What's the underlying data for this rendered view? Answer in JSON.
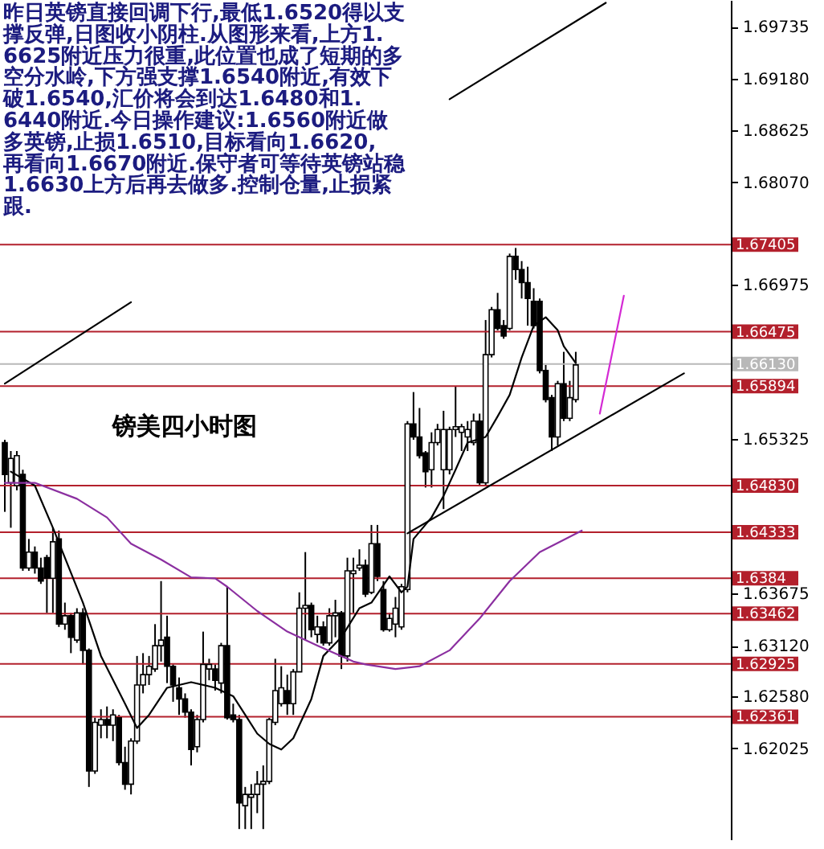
{
  "chart_data": {
    "type": "candlestick",
    "title": "镑美四小时图",
    "annotations": [
      "昨日英镑直接回调下行,最低1.6520得以支撑反弹,日图收小阴柱.从图形来看,上方1.6625附近压力很重,此位置也成了短期的多空分水岭,下方强支撑1.6540附近,有效下破1.6540,汇价将会到达1.6480和1.6440附近.今日操作建议:1.6560附近做多英镑,止损1.6510,目标看向1.6620,再看向1.6670附近.保守者可等待英镑站稳1.6630上方后再去做多.控制仓量,止损紧跟."
    ],
    "categories": [
      null,
      null,
      null,
      null,
      null,
      null,
      null,
      null,
      null,
      null,
      null,
      null,
      null,
      null,
      null,
      null,
      null,
      null,
      null,
      null,
      null,
      null,
      null,
      null,
      null,
      null,
      null,
      null,
      null,
      null,
      null,
      null,
      null,
      null,
      null,
      null,
      null,
      null,
      null,
      null,
      null,
      null,
      null,
      null,
      null,
      null,
      null,
      null,
      null,
      null,
      null,
      null,
      null,
      null,
      null,
      null,
      null,
      null,
      null,
      null,
      null,
      null,
      null,
      null,
      null,
      null,
      null,
      null,
      null,
      null,
      null,
      null,
      null,
      null,
      null,
      null,
      null,
      null,
      null,
      null,
      null,
      null,
      null,
      null,
      null,
      null,
      null,
      null,
      null,
      null,
      null,
      null,
      null,
      null,
      null,
      null,
      null,
      null,
      null,
      null,
      null,
      null,
      null,
      null,
      null,
      null,
      null,
      null,
      null,
      null,
      null,
      null,
      null,
      null,
      null,
      null,
      null,
      null,
      null,
      null,
      null
    ],
    "ohlc": [
      [
        1.6529,
        1.6532,
        1.6455,
        1.6495
      ],
      [
        1.6486,
        1.652,
        1.6438,
        1.6512
      ],
      [
        1.6483,
        1.652,
        1.6478,
        1.6515
      ],
      [
        1.6495,
        1.65,
        1.6392,
        1.6395
      ],
      [
        1.6395,
        1.6426,
        1.6392,
        1.6412
      ],
      [
        1.6412,
        1.6418,
        1.6389,
        1.6395
      ],
      [
        1.6395,
        1.6406,
        1.6378,
        1.6381
      ],
      [
        1.6406,
        1.6409,
        1.6347,
        1.6384
      ],
      [
        1.6384,
        1.6438,
        1.6347,
        1.6423
      ],
      [
        1.6426,
        1.6435,
        1.6332,
        1.6335
      ],
      [
        1.6335,
        1.6358,
        1.6329,
        1.6344
      ],
      [
        1.6344,
        1.6347,
        1.6304,
        1.6321
      ],
      [
        1.6318,
        1.6352,
        1.6315,
        1.6347
      ],
      [
        1.6347,
        1.6352,
        1.6292,
        1.6307
      ],
      [
        1.6307,
        1.6309,
        1.6161,
        1.6178
      ],
      [
        1.6178,
        1.6235,
        1.6175,
        1.623
      ],
      [
        1.6227,
        1.6244,
        1.6213,
        1.6233
      ],
      [
        1.6233,
        1.6247,
        1.6213,
        1.6227
      ],
      [
        1.6227,
        1.6244,
        1.621,
        1.6238
      ],
      [
        1.6235,
        1.6238,
        1.6184,
        1.6187
      ],
      [
        1.6187,
        1.6204,
        1.6158,
        1.6164
      ],
      [
        1.6164,
        1.6213,
        1.6153,
        1.621
      ],
      [
        1.621,
        1.6301,
        1.6207,
        1.627
      ],
      [
        1.627,
        1.6304,
        1.6261,
        1.6281
      ],
      [
        1.6281,
        1.6301,
        1.627,
        1.629
      ],
      [
        1.6287,
        1.6335,
        1.6284,
        1.6312
      ],
      [
        1.6312,
        1.6381,
        1.6295,
        1.6318
      ],
      [
        1.6321,
        1.6344,
        1.6272,
        1.629
      ],
      [
        1.629,
        1.6292,
        1.6252,
        1.627
      ],
      [
        1.6267,
        1.6278,
        1.6238,
        1.6255
      ],
      [
        1.6255,
        1.6261,
        1.6235,
        1.6241
      ],
      [
        1.6241,
        1.6244,
        1.6184,
        1.6201
      ],
      [
        1.6204,
        1.6238,
        1.6198,
        1.6233
      ],
      [
        1.6233,
        1.6327,
        1.623,
        1.6292
      ],
      [
        1.6287,
        1.6298,
        1.6275,
        1.6292
      ],
      [
        1.6287,
        1.6292,
        1.6264,
        1.6275
      ],
      [
        1.6272,
        1.6315,
        1.6261,
        1.6312
      ],
      [
        1.6312,
        1.6375,
        1.6233,
        1.6235
      ],
      [
        1.6238,
        1.625,
        1.623,
        1.6233
      ],
      [
        1.6233,
        1.6238,
        1.6116,
        1.6144
      ],
      [
        1.6141,
        1.6161,
        1.6116,
        1.6153
      ],
      [
        1.615,
        1.6164,
        1.6116,
        1.6153
      ],
      [
        1.6153,
        1.6178,
        1.6133,
        1.6164
      ],
      [
        1.6164,
        1.6184,
        1.6116,
        1.6167
      ],
      [
        1.6167,
        1.6235,
        1.6164,
        1.6233
      ],
      [
        1.623,
        1.6298,
        1.6227,
        1.6264
      ],
      [
        1.625,
        1.629,
        1.6247,
        1.6267
      ],
      [
        1.6264,
        1.6281,
        1.6238,
        1.625
      ],
      [
        1.625,
        1.6287,
        1.6238,
        1.6284
      ],
      [
        1.6284,
        1.6369,
        1.6284,
        1.6352
      ],
      [
        1.6352,
        1.6412,
        1.6318,
        1.6355
      ],
      [
        1.6355,
        1.6358,
        1.6321,
        1.6329
      ],
      [
        1.6324,
        1.6344,
        1.6315,
        1.6332
      ],
      [
        1.6332,
        1.6338,
        1.6312,
        1.6315
      ],
      [
        1.6315,
        1.6352,
        1.6312,
        1.6344
      ],
      [
        1.6344,
        1.6361,
        1.6321,
        1.6347
      ],
      [
        1.6347,
        1.6349,
        1.6287,
        1.6301
      ],
      [
        1.6301,
        1.6406,
        1.6295,
        1.6392
      ],
      [
        1.6389,
        1.6406,
        1.6347,
        1.6392
      ],
      [
        1.6395,
        1.6415,
        1.6392,
        1.6398
      ],
      [
        1.6398,
        1.6404,
        1.6364,
        1.6367
      ],
      [
        1.6369,
        1.6441,
        1.6367,
        1.6421
      ],
      [
        1.6421,
        1.6441,
        1.6381,
        1.6386
      ],
      [
        1.6372,
        1.6381,
        1.6327,
        1.6329
      ],
      [
        1.6329,
        1.6347,
        1.6327,
        1.6341
      ],
      [
        1.6335,
        1.6364,
        1.6321,
        1.6352
      ],
      [
        1.6332,
        1.6378,
        1.6329,
        1.6375
      ],
      [
        1.6372,
        1.6552,
        1.6369,
        1.6549
      ],
      [
        1.6549,
        1.6583,
        1.6532,
        1.6535
      ],
      [
        1.6535,
        1.6566,
        1.6512,
        1.6515
      ],
      [
        1.6518,
        1.652,
        1.6481,
        1.6498
      ],
      [
        1.65,
        1.654,
        1.6481,
        1.6529
      ],
      [
        1.6529,
        1.6549,
        1.6526,
        1.6543
      ],
      [
        1.65,
        1.6563,
        1.6458,
        1.6543
      ],
      [
        1.65,
        1.6546,
        1.6495,
        1.6543
      ],
      [
        1.6543,
        1.6589,
        1.6535,
        1.6546
      ],
      [
        1.654,
        1.6549,
        1.652,
        1.6546
      ],
      [
        1.6535,
        1.6552,
        1.652,
        1.6543
      ],
      [
        1.6529,
        1.656,
        1.6526,
        1.6552
      ],
      [
        1.6552,
        1.656,
        1.6483,
        1.6486
      ],
      [
        1.6486,
        1.666,
        1.6483,
        1.6623
      ],
      [
        1.6623,
        1.6674,
        1.662,
        1.6671
      ],
      [
        1.6671,
        1.6689,
        1.6649,
        1.6651
      ],
      [
        1.6654,
        1.666,
        1.664,
        1.6643
      ],
      [
        1.6651,
        1.6731,
        1.6649,
        1.6728
      ],
      [
        1.6728,
        1.6737,
        1.6703,
        1.6714
      ],
      [
        1.6714,
        1.6723,
        1.6683,
        1.67
      ],
      [
        1.67,
        1.6717,
        1.6654,
        1.6683
      ],
      [
        1.668,
        1.6694,
        1.6651,
        1.6654
      ],
      [
        1.668,
        1.6683,
        1.6603,
        1.6606
      ],
      [
        1.6606,
        1.6612,
        1.6572,
        1.6575
      ],
      [
        1.6577,
        1.658,
        1.652,
        1.6535
      ],
      [
        1.6535,
        1.6595,
        1.6526,
        1.6592
      ],
      [
        1.6592,
        1.6626,
        1.6552,
        1.6555
      ],
      [
        1.6555,
        1.6595,
        1.6552,
        1.6577
      ],
      [
        1.6575,
        1.6626,
        1.6572,
        1.6612
      ],
      null,
      null,
      null,
      null,
      null,
      null,
      null,
      null,
      null,
      null,
      null,
      null,
      null,
      null,
      null,
      null,
      null,
      null,
      null,
      null,
      null,
      null,
      null,
      null,
      null
    ],
    "series": [
      {
        "type": "line",
        "color": "#000000",
        "values": [
          null,
          1.6498,
          null,
          null,
          null,
          1.6483,
          null,
          null,
          1.6438,
          null,
          null,
          null,
          null,
          1.6358,
          null,
          null,
          1.6301,
          null,
          null,
          null,
          1.625,
          null,
          1.6224,
          null,
          1.6238,
          null,
          null,
          1.6267,
          null,
          null,
          null,
          1.6273,
          null,
          null,
          null,
          1.6267,
          null,
          null,
          1.6258,
          null,
          1.6238,
          null,
          1.6218,
          null,
          1.6207,
          null,
          1.6201,
          null,
          1.6213,
          null,
          null,
          1.6255,
          null,
          1.6301,
          null,
          null,
          1.6321,
          null,
          null,
          1.6352,
          null,
          1.6358,
          null,
          null,
          1.6386,
          null,
          1.6369,
          1.6375,
          1.6426,
          null,
          null,
          1.6449,
          null,
          1.6472,
          null,
          1.65,
          null,
          1.6529,
          null,
          null,
          1.6535,
          null,
          1.6557,
          null,
          1.658,
          null,
          1.662,
          null,
          1.6654,
          null,
          1.6663,
          null,
          1.6649,
          1.6632,
          null,
          1.6614,
          null,
          null,
          null,
          null,
          null,
          null,
          null,
          null,
          null,
          null,
          null,
          null,
          null,
          null,
          null,
          null,
          null,
          null,
          null,
          null,
          null,
          null,
          null,
          null,
          null
        ]
      },
      {
        "type": "line",
        "color": "#8b2fa0",
        "values": [
          1.6486,
          null,
          null,
          null,
          null,
          1.6486,
          null,
          null,
          null,
          null,
          null,
          null,
          1.6469,
          null,
          null,
          null,
          null,
          1.6449,
          null,
          null,
          null,
          1.6421,
          null,
          null,
          null,
          null,
          1.6404,
          null,
          null,
          null,
          null,
          1.6385,
          null,
          null,
          null,
          1.6384,
          null,
          1.6375,
          null,
          null,
          null,
          null,
          1.6349,
          null,
          null,
          null,
          null,
          1.6327,
          null,
          null,
          null,
          null,
          1.6312,
          null,
          null,
          null,
          null,
          null,
          1.6295,
          null,
          1.6292,
          null,
          null,
          null,
          null,
          1.6287,
          null,
          null,
          null,
          1.629,
          null,
          null,
          null,
          null,
          1.6307,
          null,
          null,
          null,
          null,
          1.6341,
          null,
          null,
          null,
          null,
          1.6381,
          null,
          null,
          null,
          null,
          1.6412,
          null,
          null,
          null,
          null,
          null,
          null,
          1.6435,
          null,
          null,
          null,
          null,
          null,
          null,
          null,
          null,
          null,
          null,
          null,
          null,
          null,
          null,
          null,
          null,
          null,
          null,
          null,
          null,
          null,
          null,
          null,
          null
        ]
      },
      {
        "type": "line",
        "color": "#000000",
        "values": [
          null,
          null,
          null,
          null,
          null,
          null,
          null,
          null,
          null,
          null,
          null,
          null,
          null,
          null,
          null,
          null,
          null,
          null,
          null,
          null,
          null,
          null,
          null,
          null,
          null,
          null,
          null,
          null,
          null,
          null,
          null,
          null,
          null,
          null,
          null,
          null,
          null,
          null,
          null,
          null,
          null,
          null,
          null,
          null,
          null,
          null,
          null,
          null,
          null,
          null,
          null,
          null,
          null,
          null,
          null,
          null,
          null,
          null,
          null,
          null,
          null,
          null,
          null,
          null,
          null,
          null,
          null,
          1.6432,
          null,
          null,
          null,
          null,
          null,
          null,
          null,
          null,
          null,
          null,
          null,
          null,
          null,
          null,
          null,
          null,
          null,
          null,
          null,
          null,
          null,
          null,
          null,
          null,
          null,
          null,
          null,
          null,
          null,
          null,
          null,
          null,
          null,
          null,
          null,
          null,
          null,
          null,
          null,
          null,
          null,
          null,
          null,
          null,
          null,
          1.6603,
          null,
          null,
          null,
          null,
          null,
          null,
          null
        ]
      },
      {
        "type": "line",
        "color": "#000000",
        "values": [
          null,
          null,
          null,
          null,
          null,
          null,
          null,
          null,
          null,
          null,
          null,
          null,
          null,
          null,
          null,
          null,
          null,
          null,
          null,
          null,
          null,
          null,
          null,
          null,
          null,
          null,
          null,
          null,
          null,
          null,
          null,
          null,
          null,
          null,
          null,
          null,
          null,
          null,
          null,
          null,
          null,
          null,
          null,
          null,
          null,
          null,
          null,
          null,
          null,
          null,
          null,
          null,
          null,
          null,
          null,
          null,
          null,
          null,
          null,
          null,
          null,
          null,
          null,
          null,
          null,
          null,
          null,
          null,
          null,
          null,
          null,
          null,
          null,
          null,
          1.6896,
          null,
          null,
          null,
          null,
          null,
          null,
          null,
          null,
          null,
          null,
          null,
          null,
          null,
          null,
          null,
          null,
          null,
          null,
          null,
          null,
          null,
          null,
          null,
          null,
          null,
          1.6999,
          null,
          null,
          null,
          null,
          null,
          null,
          null,
          null,
          null,
          null,
          null,
          null,
          null,
          null,
          null,
          null,
          null,
          null,
          null,
          null
        ]
      },
      {
        "type": "line",
        "color": "#000000",
        "values": [
          1.6592,
          null,
          null,
          null,
          null,
          null,
          null,
          null,
          null,
          null,
          null,
          null,
          null,
          null,
          null,
          null,
          null,
          null,
          null,
          null,
          null,
          1.6679,
          null,
          null,
          null,
          null,
          null,
          null,
          null,
          null,
          null,
          null,
          null,
          null,
          null,
          null,
          null,
          null,
          null,
          null,
          null,
          null,
          null,
          null,
          null,
          null,
          null,
          null,
          null,
          null,
          null,
          null,
          null,
          null,
          null,
          null,
          null,
          null,
          null,
          null,
          null,
          null,
          null,
          null,
          null,
          null,
          null,
          null,
          null,
          null,
          null,
          null,
          null,
          null,
          null,
          null,
          null,
          null,
          null,
          null,
          null,
          null,
          null,
          null,
          null,
          null,
          null,
          null,
          null,
          null,
          null,
          null,
          null,
          null,
          null,
          null,
          null,
          null,
          null,
          null,
          null,
          null,
          null,
          null,
          null,
          null,
          null,
          null,
          null,
          null,
          null,
          null,
          null,
          null,
          null,
          null,
          null,
          null,
          null,
          null,
          null
        ]
      },
      {
        "type": "line",
        "color": "#d42ad4",
        "values": [
          null,
          null,
          null,
          null,
          null,
          null,
          null,
          null,
          null,
          null,
          null,
          null,
          null,
          null,
          null,
          null,
          null,
          null,
          null,
          null,
          null,
          null,
          null,
          null,
          null,
          null,
          null,
          null,
          null,
          null,
          null,
          null,
          null,
          null,
          null,
          null,
          null,
          null,
          null,
          null,
          null,
          null,
          null,
          null,
          null,
          null,
          null,
          null,
          null,
          null,
          null,
          null,
          null,
          null,
          null,
          null,
          null,
          null,
          null,
          null,
          null,
          null,
          null,
          null,
          null,
          null,
          null,
          null,
          null,
          null,
          null,
          null,
          null,
          null,
          null,
          null,
          null,
          null,
          null,
          null,
          null,
          null,
          null,
          null,
          null,
          null,
          null,
          null,
          null,
          null,
          null,
          null,
          null,
          null,
          null,
          null,
          null,
          null,
          null,
          1.656,
          null,
          null,
          null,
          1.6686,
          null,
          null,
          null,
          null,
          null,
          null,
          null,
          null,
          null,
          null,
          null,
          null,
          null,
          null,
          null,
          null,
          null
        ]
      }
    ],
    "ref_lines": [
      {
        "axis": "y",
        "value": 1.67405,
        "label": "1.67405",
        "color": "#b3202c"
      },
      {
        "axis": "y",
        "value": 1.66475,
        "label": "1.66475",
        "color": "#b3202c"
      },
      {
        "axis": "y",
        "value": 1.6613,
        "label": "1.66130",
        "color": "#b8b8b8"
      },
      {
        "axis": "y",
        "value": 1.65894,
        "label": "1.65894",
        "color": "#b3202c"
      },
      {
        "axis": "y",
        "value": 1.6483,
        "label": "1.64830",
        "color": "#b3202c"
      },
      {
        "axis": "y",
        "value": 1.64333,
        "label": "1.64333",
        "color": "#b3202c"
      },
      {
        "axis": "y",
        "value": 1.6384,
        "label": "1.6384",
        "color": "#b3202c"
      },
      {
        "axis": "y",
        "value": 1.63462,
        "label": "1.63462",
        "color": "#b3202c"
      },
      {
        "axis": "y",
        "value": 1.62925,
        "label": "1.62925",
        "color": "#b3202c"
      },
      {
        "axis": "y",
        "value": 1.62361,
        "label": "1.62361",
        "color": "#b3202c"
      }
    ],
    "ylim": [
      1.6105,
      1.7002
    ],
    "yticks": [
      1.69735,
      {
        "value": 1.6918,
        "label": "1.69180"
      },
      1.68625,
      {
        "value": 1.6807,
        "label": "1.68070"
      },
      1.66975,
      1.65325,
      1.63675,
      {
        "value": 1.6312,
        "label": "1.63120"
      },
      {
        "value": 1.6258,
        "label": "1.62580"
      },
      1.62025
    ],
    "tick_labels": "y"
  }
}
